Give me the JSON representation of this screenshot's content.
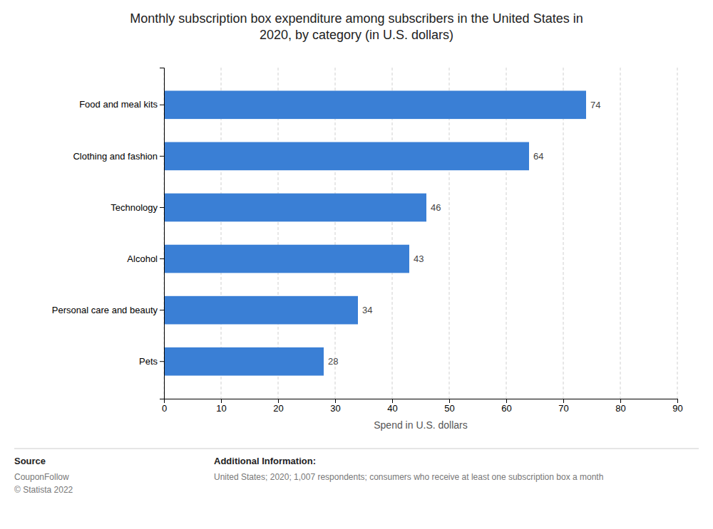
{
  "chart_data": {
    "type": "bar",
    "orientation": "horizontal",
    "title": "Monthly subscription box expenditure among subscribers in the United States in\n2020, by category (in U.S. dollars)",
    "categories": [
      "Pets",
      "Personal care and beauty",
      "Alcohol",
      "Technology",
      "Clothing and fashion",
      "Food and meal kits"
    ],
    "values": [
      28,
      34,
      43,
      46,
      64,
      74
    ],
    "color": "#3a7fd5",
    "xlabel": "Spend in U.S. dollars",
    "xlim": [
      0,
      90
    ],
    "xticks": [
      0,
      10,
      20,
      30,
      40,
      50,
      60,
      70,
      80,
      90
    ],
    "grid": true,
    "data_labels": true,
    "annotations": [
      "Source",
      "CouponFollow\n© Statista 2022",
      "Additional Information:",
      "United States; 2020; 1,007 respondents; consumers who receive at least one subscription box a month"
    ]
  }
}
